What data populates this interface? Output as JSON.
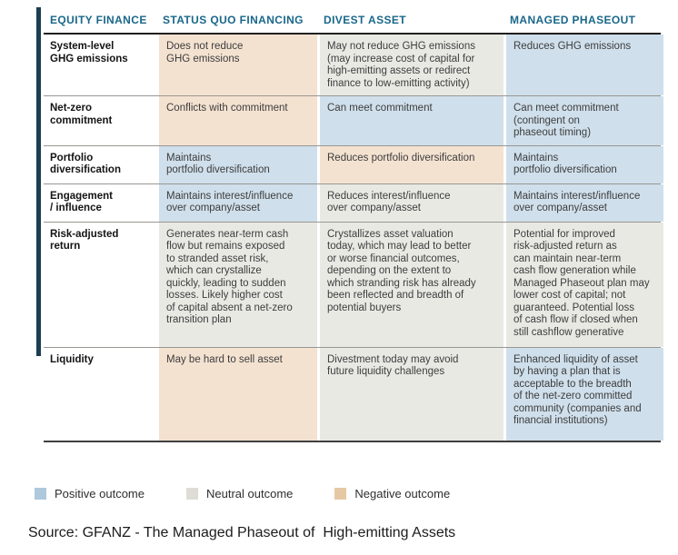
{
  "table": {
    "columns": [
      "EQUITY FINANCE",
      "STATUS QUO FINANCING",
      "DIVEST ASSET",
      "MANAGED PHASEOUT"
    ],
    "rows": [
      {
        "label": "System-level\nGHG emissions",
        "cells": [
          {
            "text": "Does not reduce\nGHG emissions",
            "outcome": "negative"
          },
          {
            "text": "May not reduce GHG emissions\n(may increase cost of capital for\nhigh-emitting assets or redirect\nfinance to low-emitting activity)",
            "outcome": "neutral"
          },
          {
            "text": "Reduces GHG emissions",
            "outcome": "positive"
          }
        ]
      },
      {
        "label": "Net-zero\ncommitment",
        "cells": [
          {
            "text": "Conflicts with commitment",
            "outcome": "negative"
          },
          {
            "text": "Can meet commitment",
            "outcome": "positive"
          },
          {
            "text": "Can meet commitment\n(contingent on\nphaseout timing)",
            "outcome": "positive"
          }
        ]
      },
      {
        "label": "Portfolio\ndiversification",
        "cells": [
          {
            "text": "Maintains\nportfolio diversification",
            "outcome": "positive"
          },
          {
            "text": "Reduces portfolio diversification",
            "outcome": "negative"
          },
          {
            "text": "Maintains\nportfolio diversification",
            "outcome": "positive"
          }
        ]
      },
      {
        "label": "Engagement\n/ influence",
        "cells": [
          {
            "text": "Maintains interest/influence\nover company/asset",
            "outcome": "positive"
          },
          {
            "text": "Reduces interest/influence\nover company/asset",
            "outcome": "neutral"
          },
          {
            "text": "Maintains interest/influence\nover company/asset",
            "outcome": "positive"
          }
        ]
      },
      {
        "label": "Risk-adjusted\nreturn",
        "cells": [
          {
            "text": "Generates near-term cash\nflow but remains exposed\nto stranded asset risk,\nwhich can crystallize\nquickly, leading to sudden\nlosses. Likely higher cost\nof capital absent a net-zero\ntransition plan",
            "outcome": "neutral"
          },
          {
            "text": "Crystallizes asset valuation\ntoday, which may lead to better\nor worse financial outcomes,\ndepending on the extent to\nwhich stranding risk has already\nbeen reflected and breadth of\npotential buyers",
            "outcome": "neutral"
          },
          {
            "text": "Potential for improved\nrisk-adjusted return as\ncan maintain near-term\ncash flow generation while\nManaged Phaseout plan may\nlower cost of capital; not\nguaranteed. Potential loss\nof cash flow if closed when\nstill cashflow generative",
            "outcome": "neutral"
          }
        ]
      },
      {
        "label": "Liquidity",
        "cells": [
          {
            "text": "May be hard to sell asset",
            "outcome": "negative"
          },
          {
            "text": "Divestment today may avoid\nfuture liquidity challenges",
            "outcome": "neutral"
          },
          {
            "text": "Enhanced liquidity of asset\nby having a plan that is\nacceptable to the breadth\nof the net-zero committed\ncommunity (companies and\nfinancial institutions)",
            "outcome": "positive"
          }
        ]
      }
    ]
  },
  "legend": [
    {
      "key": "positive",
      "label": "Positive outcome"
    },
    {
      "key": "neutral",
      "label": "Neutral outcome"
    },
    {
      "key": "negative",
      "label": "Negative outcome"
    }
  ],
  "source": "Source: GFANZ - The Managed Phaseout of  High-emitting Assets",
  "colors": {
    "cell": {
      "positive": "#cfdfeb",
      "neutral": "#e9e9e4",
      "negative": "#f4e2d1"
    },
    "legend": {
      "positive": "#afc9dc",
      "neutral": "#dedcd6",
      "negative": "#e6c8a4"
    },
    "header_text": "#19678a",
    "accent_bar": "#1c3d52"
  }
}
